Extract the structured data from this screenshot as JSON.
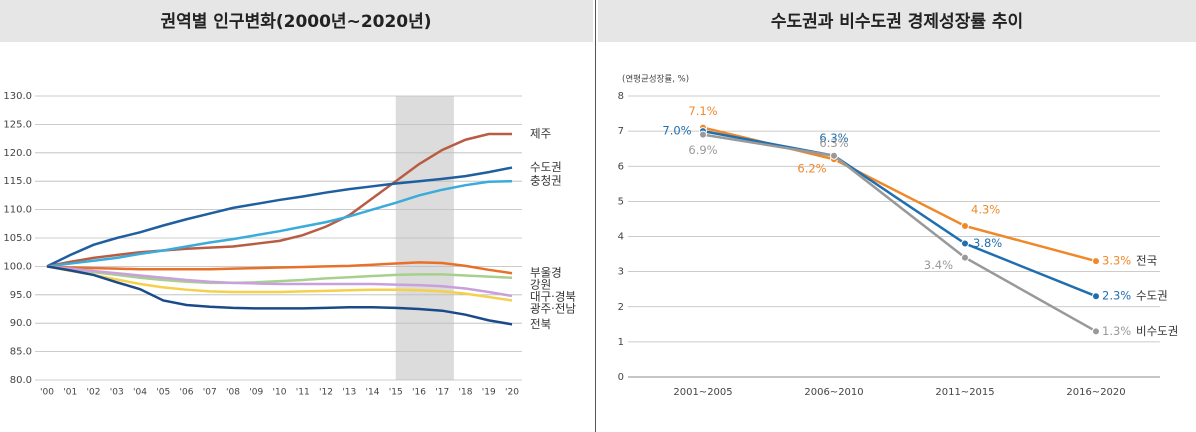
{
  "chart_data": [
    {
      "type": "line",
      "title": "권역별 인구변화(2000년~2020년)",
      "categories": [
        "'00",
        "'01",
        "'02",
        "'03",
        "'04",
        "'05",
        "'06",
        "'07",
        "'08",
        "'09",
        "'10",
        "'11",
        "'12",
        "'13",
        "'14",
        "'15",
        "'16",
        "'17",
        "'18",
        "'19",
        "'20"
      ],
      "ylim": [
        80,
        130
      ],
      "yticks": [
        {
          "value": 80,
          "label": "80.0"
        },
        {
          "value": 85,
          "label": "85.0"
        },
        {
          "value": 90,
          "label": "90.0"
        },
        {
          "value": 95,
          "label": "95.0"
        },
        {
          "value": 100,
          "label": "100.0"
        },
        {
          "value": 105,
          "label": "105.0"
        },
        {
          "value": 110,
          "label": "110.0"
        },
        {
          "value": 115,
          "label": "115.0"
        },
        {
          "value": 120,
          "label": "120.0"
        },
        {
          "value": 125,
          "label": "125.0"
        },
        {
          "value": 130,
          "label": "130.0"
        }
      ],
      "grid": true,
      "series": [
        {
          "name": "제주",
          "color": "#b85c44",
          "values": [
            100,
            100.8,
            101.5,
            102,
            102.5,
            102.8,
            103.1,
            103.3,
            103.5,
            104,
            104.5,
            105.5,
            107,
            109,
            112,
            115,
            118,
            120.5,
            122.3,
            123.3,
            123.3
          ]
        },
        {
          "name": "수도권",
          "color": "#1f5fa0",
          "values": [
            100,
            102,
            103.8,
            105,
            106,
            107.2,
            108.3,
            109.3,
            110.3,
            111,
            111.7,
            112.3,
            113,
            113.6,
            114.1,
            114.6,
            115,
            115.4,
            115.9,
            116.6,
            117.4
          ]
        },
        {
          "name": "충청권",
          "color": "#3aacdc",
          "values": [
            100,
            100.5,
            101,
            101.5,
            102.2,
            102.8,
            103.5,
            104.2,
            104.8,
            105.5,
            106.2,
            107,
            107.8,
            108.8,
            110,
            111.2,
            112.5,
            113.5,
            114.3,
            114.9,
            115
          ]
        },
        {
          "name": "부울경",
          "color": "#e8702a",
          "values": [
            100,
            99.8,
            99.7,
            99.6,
            99.5,
            99.5,
            99.5,
            99.5,
            99.6,
            99.7,
            99.8,
            99.9,
            100,
            100.1,
            100.3,
            100.5,
            100.7,
            100.6,
            100.1,
            99.4,
            98.8
          ]
        },
        {
          "name": "강원",
          "color": "#a8d08d",
          "values": [
            100,
            99.5,
            99,
            98.5,
            98,
            97.6,
            97.3,
            97.1,
            97.1,
            97.2,
            97.4,
            97.6,
            97.9,
            98.1,
            98.3,
            98.5,
            98.6,
            98.6,
            98.4,
            98.2,
            98
          ]
        },
        {
          "name": "대구·경북",
          "color": "#c9a0dc",
          "values": [
            100,
            99.6,
            99.2,
            98.8,
            98.4,
            98,
            97.6,
            97.3,
            97.1,
            97,
            96.9,
            96.9,
            96.9,
            96.9,
            96.9,
            96.8,
            96.7,
            96.5,
            96.1,
            95.5,
            94.8
          ]
        },
        {
          "name": "광주·전남",
          "color": "#f5d04a",
          "values": [
            100,
            99.2,
            98.5,
            97.7,
            96.9,
            96.3,
            95.9,
            95.6,
            95.5,
            95.5,
            95.5,
            95.6,
            95.7,
            95.8,
            95.9,
            95.9,
            95.8,
            95.6,
            95.2,
            94.6,
            94
          ]
        },
        {
          "name": "전북",
          "color": "#1b4a8a",
          "values": [
            100,
            99.3,
            98.5,
            97.2,
            96,
            94,
            93.2,
            92.9,
            92.7,
            92.6,
            92.6,
            92.6,
            92.7,
            92.8,
            92.8,
            92.7,
            92.5,
            92.2,
            91.5,
            90.5,
            89.8
          ]
        }
      ]
    },
    {
      "type": "line",
      "title": "수도권과 비수도권 경제성장률 추이",
      "y_label": "(연평균성장률, %)",
      "categories": [
        "2001~2005",
        "2006~2010",
        "2011~2015",
        "2016~2020"
      ],
      "ylim": [
        0,
        8
      ],
      "yticks": [
        0,
        1,
        2,
        3,
        4,
        5,
        6,
        7,
        8
      ],
      "grid": true,
      "series": [
        {
          "name": "전국",
          "color": "#f0882a",
          "values": [
            7.1,
            6.2,
            4.3,
            3.3
          ],
          "value_labels": [
            "7.1%",
            "6.2%",
            "4.3%",
            "3.3%"
          ]
        },
        {
          "name": "수도권",
          "color": "#1f6fb0",
          "values": [
            7.0,
            6.3,
            3.8,
            2.3
          ],
          "value_labels": [
            "7.0%",
            "6.3%",
            "3.8%",
            "2.3%"
          ]
        },
        {
          "name": "비수도권",
          "color": "#999999",
          "values": [
            6.9,
            6.3,
            3.4,
            1.3
          ],
          "value_labels": [
            "6.9%",
            "6.3%",
            "3.4%",
            "1.3%"
          ]
        }
      ]
    }
  ]
}
